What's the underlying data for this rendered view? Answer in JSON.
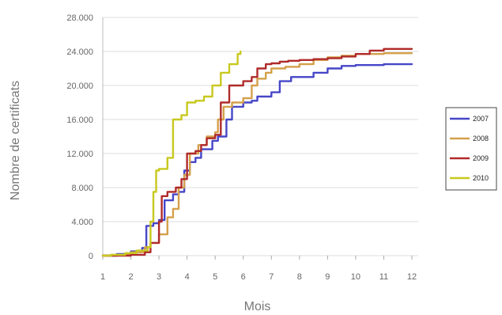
{
  "chart_data": {
    "type": "line",
    "title": "",
    "xlabel": "Mois",
    "ylabel": "Nombre de certificats",
    "xlim": [
      1,
      12
    ],
    "ylim": [
      0,
      28000
    ],
    "x_ticks": [
      1,
      2,
      3,
      4,
      5,
      6,
      7,
      8,
      9,
      10,
      11,
      12
    ],
    "y_ticks": [
      0,
      4000,
      8000,
      12000,
      16000,
      20000,
      24000,
      28000
    ],
    "y_tick_labels": [
      "0",
      "4.000",
      "8.000",
      "12.000",
      "16.000",
      "20.000",
      "24.000",
      "28.000"
    ],
    "grid": true,
    "legend_position": "right",
    "series": [
      {
        "name": "2007",
        "color": "#4646c8",
        "points": [
          [
            1,
            0
          ],
          [
            1.2,
            0
          ],
          [
            1.5,
            200
          ],
          [
            2,
            500
          ],
          [
            2.4,
            900
          ],
          [
            2.55,
            3500
          ],
          [
            2.8,
            3800
          ],
          [
            3,
            4200
          ],
          [
            3.2,
            6500
          ],
          [
            3.5,
            7200
          ],
          [
            3.7,
            7500
          ],
          [
            3.9,
            10000
          ],
          [
            4.1,
            11000
          ],
          [
            4.3,
            11500
          ],
          [
            4.5,
            12500
          ],
          [
            4.9,
            13500
          ],
          [
            5.1,
            14000
          ],
          [
            5.4,
            16000
          ],
          [
            5.6,
            17500
          ],
          [
            6,
            18000
          ],
          [
            6.3,
            18200
          ],
          [
            6.5,
            18700
          ],
          [
            7,
            19200
          ],
          [
            7.3,
            20500
          ],
          [
            7.7,
            21000
          ],
          [
            8,
            21000
          ],
          [
            8.5,
            21500
          ],
          [
            9,
            22000
          ],
          [
            9.5,
            22300
          ],
          [
            10,
            22400
          ],
          [
            10.5,
            22400
          ],
          [
            11,
            22500
          ],
          [
            12,
            22500
          ]
        ]
      },
      {
        "name": "2008",
        "color": "#d4a04a",
        "points": [
          [
            1,
            0
          ],
          [
            1.3,
            100
          ],
          [
            2,
            400
          ],
          [
            2.5,
            1000
          ],
          [
            2.7,
            1500
          ],
          [
            3,
            2500
          ],
          [
            3.3,
            4500
          ],
          [
            3.5,
            5500
          ],
          [
            3.7,
            8000
          ],
          [
            3.9,
            9500
          ],
          [
            4.1,
            12000
          ],
          [
            4.4,
            13000
          ],
          [
            4.7,
            14000
          ],
          [
            5,
            14500
          ],
          [
            5.1,
            16000
          ],
          [
            5.3,
            17500
          ],
          [
            5.6,
            18000
          ],
          [
            6,
            18500
          ],
          [
            6.3,
            20000
          ],
          [
            6.5,
            20800
          ],
          [
            6.8,
            21500
          ],
          [
            7,
            22000
          ],
          [
            7.5,
            22200
          ],
          [
            8,
            22500
          ],
          [
            8.5,
            23000
          ],
          [
            9,
            23300
          ],
          [
            9.5,
            23500
          ],
          [
            10,
            23700
          ],
          [
            11,
            23800
          ],
          [
            12,
            23800
          ]
        ]
      },
      {
        "name": "2009",
        "color": "#b02a2a",
        "points": [
          [
            1,
            0
          ],
          [
            1.5,
            0
          ],
          [
            2,
            100
          ],
          [
            2.5,
            400
          ],
          [
            2.7,
            1500
          ],
          [
            3,
            4000
          ],
          [
            3.1,
            7000
          ],
          [
            3.3,
            7500
          ],
          [
            3.6,
            8000
          ],
          [
            3.8,
            9000
          ],
          [
            4,
            12000
          ],
          [
            4.3,
            12300
          ],
          [
            4.5,
            13000
          ],
          [
            4.7,
            13800
          ],
          [
            5,
            14200
          ],
          [
            5.2,
            18000
          ],
          [
            5.5,
            20000
          ],
          [
            6,
            20500
          ],
          [
            6.3,
            21000
          ],
          [
            6.5,
            22000
          ],
          [
            6.8,
            22500
          ],
          [
            7,
            22600
          ],
          [
            7.3,
            22800
          ],
          [
            7.6,
            22900
          ],
          [
            8,
            23000
          ],
          [
            8.5,
            23100
          ],
          [
            9,
            23200
          ],
          [
            9.5,
            23400
          ],
          [
            10,
            23700
          ],
          [
            10.5,
            24100
          ],
          [
            11,
            24300
          ],
          [
            12,
            24300
          ]
        ]
      },
      {
        "name": "2010",
        "color": "#c8c81e",
        "points": [
          [
            1,
            0
          ],
          [
            1.3,
            100
          ],
          [
            1.8,
            300
          ],
          [
            2.2,
            600
          ],
          [
            2.6,
            1000
          ],
          [
            2.7,
            4000
          ],
          [
            2.8,
            7500
          ],
          [
            2.9,
            10000
          ],
          [
            3,
            10200
          ],
          [
            3.3,
            11500
          ],
          [
            3.5,
            16000
          ],
          [
            3.8,
            16500
          ],
          [
            4,
            18000
          ],
          [
            4.3,
            18200
          ],
          [
            4.6,
            18700
          ],
          [
            4.9,
            20000
          ],
          [
            5.2,
            21500
          ],
          [
            5.5,
            22500
          ],
          [
            5.8,
            23700
          ],
          [
            5.9,
            24000
          ]
        ]
      }
    ]
  }
}
